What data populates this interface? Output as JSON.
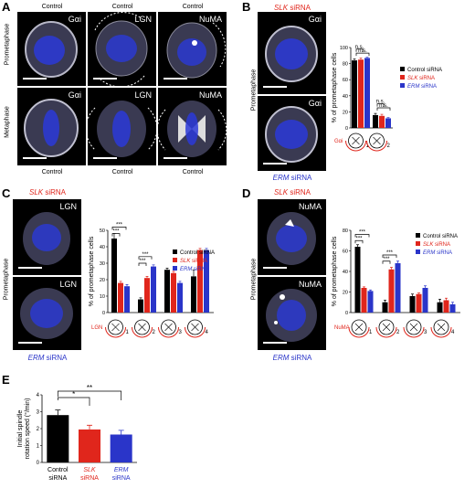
{
  "panels": {
    "A": {
      "letter": "A",
      "col_top": [
        "Control",
        "Control",
        "Control"
      ],
      "col_bottom": [
        "Control",
        "Control",
        "Control"
      ],
      "row_labels": [
        "Prometaphase",
        "Metaphase"
      ],
      "tags_row1": [
        "Gαi",
        "LGN",
        "NuMA"
      ],
      "tags_row2": [
        "Gαi",
        "LGN",
        "NuMA"
      ]
    },
    "B": {
      "letter": "B",
      "top_label_italic": "SLK",
      "top_label_rest": " siRNA",
      "bottom_label_italic": "ERM",
      "bottom_label_rest": " siRNA",
      "row_label": "Prometaphase",
      "tags": [
        "Gαi",
        "Gαi"
      ],
      "protein_label": "Gαi"
    },
    "C": {
      "letter": "C",
      "top_label_italic": "SLK",
      "top_label_rest": " siRNA",
      "bottom_label_italic": "ERM",
      "bottom_label_rest": " siRNA",
      "row_label": "Prometaphase",
      "tags": [
        "LGN",
        "LGN"
      ],
      "protein_label": "LGN"
    },
    "D": {
      "letter": "D",
      "top_label_italic": "SLK",
      "top_label_rest": " siRNA",
      "bottom_label_italic": "ERM",
      "bottom_label_rest": " siRNA",
      "row_label": "Prometaphase",
      "tags": [
        "NuMA",
        "NuMA"
      ],
      "protein_label": "NuMA"
    },
    "E": {
      "letter": "E"
    }
  },
  "legend": [
    {
      "pre": "",
      "italic": "",
      "text": "Control siRNA",
      "color": "#000000"
    },
    {
      "pre": "",
      "italic": "SLK",
      "text": " siRNA",
      "color": "#e0261c"
    },
    {
      "pre": "",
      "italic": "ERM",
      "text": " siRNA",
      "color": "#2a35c9"
    }
  ],
  "colors": {
    "control": "#000000",
    "slk": "#e0261c",
    "erm": "#2a35c9"
  },
  "chart_data": [
    {
      "panel": "B",
      "type": "bar",
      "ylabel": "% of prometaphase cells",
      "ylim": [
        0,
        100
      ],
      "yticks": [
        0,
        20,
        40,
        60,
        80,
        100
      ],
      "categories": [
        "1",
        "2"
      ],
      "series": [
        {
          "name": "Control siRNA",
          "values": [
            84,
            16
          ],
          "errors": [
            2,
            2
          ]
        },
        {
          "name": "SLK siRNA",
          "values": [
            85,
            15
          ],
          "errors": [
            2,
            2
          ]
        },
        {
          "name": "ERM siRNA",
          "values": [
            87,
            12
          ],
          "errors": [
            1,
            1
          ]
        }
      ],
      "annotations": [
        "n.s.",
        "n.s.",
        "n.s.",
        "n.s."
      ]
    },
    {
      "panel": "C",
      "type": "bar",
      "ylabel": "% of prometaphase cells",
      "ylim": [
        0,
        50
      ],
      "yticks": [
        0,
        10,
        20,
        30,
        40,
        50
      ],
      "categories": [
        "1",
        "2",
        "3",
        "4"
      ],
      "series": [
        {
          "name": "Control siRNA",
          "values": [
            45,
            8,
            26,
            22
          ],
          "errors": [
            3,
            1,
            1,
            4
          ]
        },
        {
          "name": "SLK siRNA",
          "values": [
            18,
            21,
            24,
            38
          ],
          "errors": [
            1,
            1,
            1,
            1
          ]
        },
        {
          "name": "ERM siRNA",
          "values": [
            16,
            28,
            18,
            38
          ],
          "errors": [
            1,
            1,
            1,
            1
          ]
        }
      ],
      "annotations": [
        "***",
        "***",
        "***",
        "***"
      ]
    },
    {
      "panel": "D",
      "type": "bar",
      "ylabel": "% of prometaphase cells",
      "ylim": [
        0,
        80
      ],
      "yticks": [
        0,
        20,
        40,
        60,
        80
      ],
      "categories": [
        "1",
        "2",
        "3",
        "4"
      ],
      "series": [
        {
          "name": "Control siRNA",
          "values": [
            64,
            10,
            16,
            10
          ],
          "errors": [
            2,
            2,
            2,
            3
          ]
        },
        {
          "name": "SLK siRNA",
          "values": [
            24,
            42,
            18,
            12
          ],
          "errors": [
            1,
            2,
            1,
            2
          ]
        },
        {
          "name": "ERM siRNA",
          "values": [
            21,
            48,
            24,
            8
          ],
          "errors": [
            1,
            2,
            2,
            2
          ]
        }
      ],
      "annotations": [
        "***",
        "***",
        "***",
        "***"
      ]
    },
    {
      "panel": "E",
      "type": "bar",
      "ylabel": "Initial spindle rotation speed (°/min)",
      "ylim": [
        0,
        4
      ],
      "yticks": [
        0,
        1,
        2,
        3,
        4
      ],
      "categories": [
        {
          "italic": "",
          "line1": "Control",
          "line2": "siRNA"
        },
        {
          "italic": "SLK",
          "line1": "SLK",
          "line2": "siRNA"
        },
        {
          "italic": "ERM",
          "line1": "ERM",
          "line2": "siRNA"
        }
      ],
      "values": [
        2.8,
        1.95,
        1.65
      ],
      "errors": [
        0.3,
        0.25,
        0.25
      ],
      "annotations": [
        "*",
        "**"
      ]
    }
  ]
}
